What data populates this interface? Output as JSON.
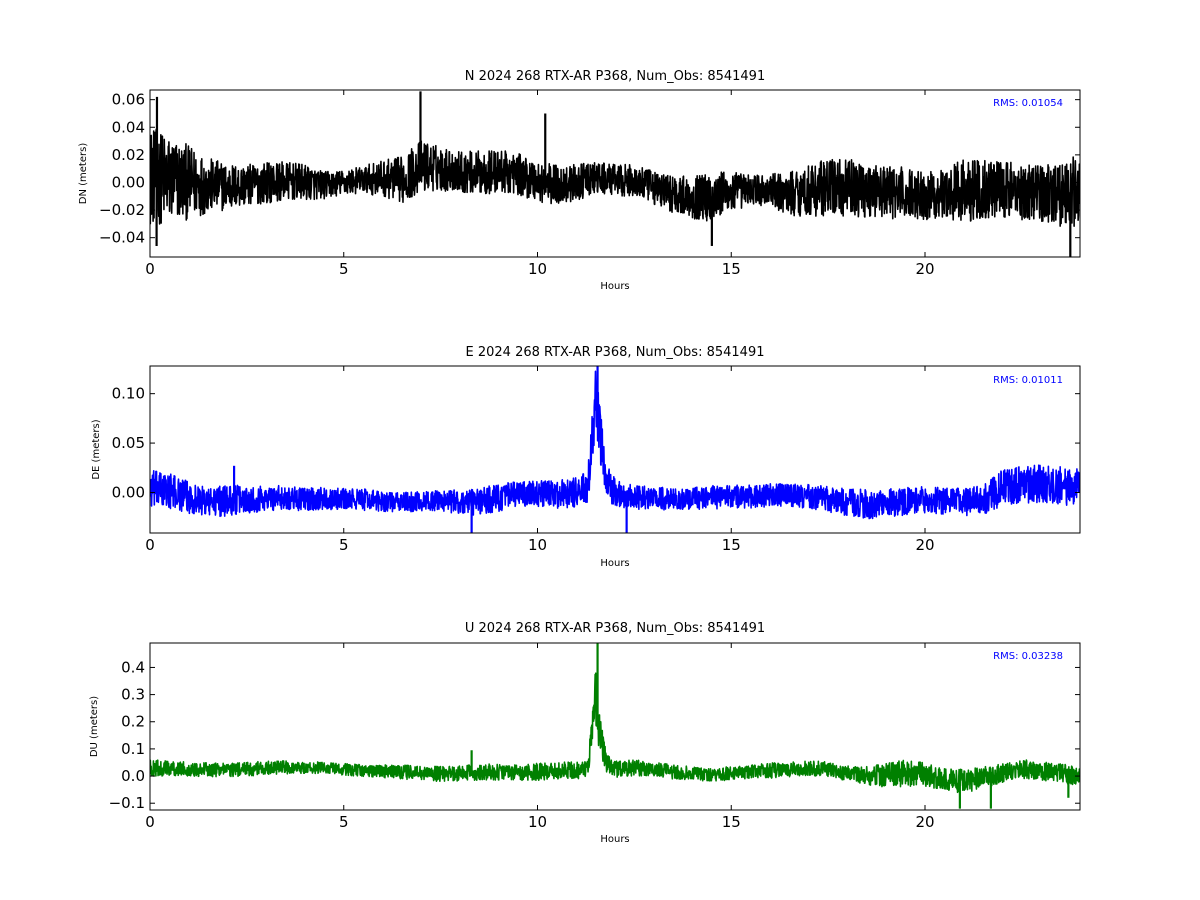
{
  "chart_data": [
    {
      "type": "line",
      "title": "N 2024 268 RTX-AR  P368, Num_Obs: 8541491",
      "xlabel": "Hours",
      "ylabel": "DN (meters)",
      "xlim": [
        0,
        24
      ],
      "ylim": [
        -0.054,
        0.067
      ],
      "xticks": [
        0,
        5,
        10,
        15,
        20
      ],
      "yticks": [
        -0.04,
        -0.02,
        0.0,
        0.02,
        0.04,
        0.06
      ],
      "ytick_labels": [
        "−0.04",
        "−0.02",
        "0.00",
        "0.02",
        "0.04",
        "0.06"
      ],
      "color": "#000000",
      "annotation": "RMS:  0.01054",
      "annotation_color": "#0000ff",
      "series": [
        {
          "x": [
            0,
            0.5,
            1,
            1.5,
            2,
            2.5,
            3,
            3.5,
            4,
            4.5,
            5,
            5.5,
            6,
            6.5,
            7,
            7.5,
            8,
            8.5,
            9,
            9.5,
            10,
            10.5,
            11,
            11.5,
            12,
            12.5,
            13,
            13.5,
            14,
            14.5,
            15,
            15.5,
            16,
            16.5,
            17,
            17.5,
            18,
            18.5,
            19,
            19.5,
            20,
            20.5,
            21,
            21.5,
            22,
            22.5,
            23,
            23.5,
            24
          ],
          "center": [
            0.005,
            0.002,
            0.0,
            -0.002,
            -0.003,
            -0.002,
            0.0,
            0.001,
            0.0,
            -0.002,
            0.0,
            0.002,
            0.003,
            0.002,
            0.012,
            0.01,
            0.008,
            0.007,
            0.008,
            0.006,
            0.001,
            -0.002,
            0.0,
            0.003,
            0.002,
            0.001,
            -0.004,
            -0.008,
            -0.011,
            -0.01,
            -0.007,
            -0.005,
            -0.006,
            -0.008,
            -0.006,
            -0.003,
            -0.004,
            -0.005,
            -0.007,
            -0.008,
            -0.009,
            -0.008,
            -0.006,
            -0.004,
            -0.005,
            -0.006,
            -0.007,
            -0.008,
            -0.006
          ],
          "amplitude": [
            0.036,
            0.032,
            0.027,
            0.02,
            0.017,
            0.015,
            0.015,
            0.014,
            0.013,
            0.01,
            0.009,
            0.01,
            0.013,
            0.017,
            0.019,
            0.016,
            0.015,
            0.016,
            0.016,
            0.015,
            0.015,
            0.015,
            0.013,
            0.012,
            0.011,
            0.012,
            0.012,
            0.014,
            0.015,
            0.019,
            0.015,
            0.011,
            0.012,
            0.016,
            0.019,
            0.021,
            0.021,
            0.02,
            0.019,
            0.019,
            0.018,
            0.017,
            0.024,
            0.022,
            0.02,
            0.021,
            0.022,
            0.024,
            0.026
          ]
        }
      ],
      "spikes": [
        [
          0.18,
          0.062
        ],
        [
          0.17,
          -0.046
        ],
        [
          6.98,
          0.066
        ],
        [
          10.2,
          0.05
        ],
        [
          14.5,
          -0.046
        ],
        [
          23.75,
          -0.054
        ]
      ]
    },
    {
      "type": "line",
      "title": "E 2024 268 RTX-AR  P368, Num_Obs: 8541491",
      "xlabel": "Hours",
      "ylabel": "DE (meters)",
      "xlim": [
        0,
        24
      ],
      "ylim": [
        -0.041,
        0.128
      ],
      "xticks": [
        0,
        5,
        10,
        15,
        20
      ],
      "yticks": [
        0.0,
        0.05,
        0.1
      ],
      "ytick_labels": [
        "0.00",
        "0.05",
        "0.10"
      ],
      "color": "#0000ff",
      "annotation": "RMS:  0.01011",
      "annotation_color": "#0000ff",
      "series": [
        {
          "x": [
            0,
            0.5,
            1,
            1.5,
            2,
            2.5,
            3,
            3.5,
            4,
            4.5,
            5,
            5.5,
            6,
            6.5,
            7,
            7.5,
            8,
            8.5,
            9,
            9.5,
            10,
            10.5,
            11,
            11.3,
            11.5,
            11.6,
            11.8,
            12,
            12.5,
            13,
            13.5,
            14,
            14.5,
            15,
            15.5,
            16,
            16.5,
            17,
            17.5,
            18,
            18.5,
            19,
            19.5,
            20,
            20.5,
            21,
            21.5,
            22,
            22.5,
            23,
            23.5,
            24
          ],
          "center": [
            0.003,
            0.002,
            -0.005,
            -0.01,
            -0.008,
            -0.007,
            -0.006,
            -0.005,
            -0.007,
            -0.006,
            -0.007,
            -0.007,
            -0.009,
            -0.01,
            -0.009,
            -0.008,
            -0.01,
            -0.009,
            -0.005,
            -0.002,
            -0.001,
            -0.002,
            0.0,
            0.005,
            0.09,
            0.06,
            0.01,
            0.0,
            -0.005,
            -0.006,
            -0.007,
            -0.006,
            -0.005,
            -0.004,
            -0.004,
            -0.003,
            -0.003,
            -0.004,
            -0.007,
            -0.01,
            -0.012,
            -0.011,
            -0.009,
            -0.008,
            -0.009,
            -0.01,
            -0.008,
            0.005,
            0.008,
            0.009,
            0.007,
            0.005
          ],
          "amplitude": [
            0.02,
            0.018,
            0.016,
            0.015,
            0.016,
            0.014,
            0.013,
            0.012,
            0.012,
            0.011,
            0.011,
            0.011,
            0.01,
            0.01,
            0.01,
            0.011,
            0.013,
            0.014,
            0.014,
            0.013,
            0.013,
            0.014,
            0.015,
            0.018,
            0.035,
            0.03,
            0.018,
            0.014,
            0.013,
            0.012,
            0.011,
            0.011,
            0.012,
            0.012,
            0.012,
            0.012,
            0.012,
            0.012,
            0.013,
            0.014,
            0.015,
            0.015,
            0.014,
            0.014,
            0.014,
            0.014,
            0.015,
            0.018,
            0.019,
            0.019,
            0.019,
            0.02
          ]
        }
      ],
      "spikes": [
        [
          2.17,
          0.027
        ],
        [
          8.3,
          -0.041
        ],
        [
          11.55,
          0.128
        ],
        [
          12.3,
          -0.041
        ],
        [
          23.5,
          0.02
        ]
      ]
    },
    {
      "type": "line",
      "title": "U 2024 268 RTX-AR  P368, Num_Obs: 8541491",
      "xlabel": "Hours",
      "ylabel": "DU (meters)",
      "xlim": [
        0,
        24
      ],
      "ylim": [
        -0.125,
        0.49
      ],
      "xticks": [
        0,
        5,
        10,
        15,
        20
      ],
      "yticks": [
        -0.1,
        0.0,
        0.1,
        0.2,
        0.3,
        0.4
      ],
      "ytick_labels": [
        "−0.1",
        "0.0",
        "0.1",
        "0.2",
        "0.3",
        "0.4"
      ],
      "color": "#008000",
      "annotation": "RMS:  0.03238",
      "annotation_color": "#0000ff",
      "series": [
        {
          "x": [
            0,
            0.5,
            1,
            1.5,
            2,
            2.5,
            3,
            3.5,
            4,
            4.5,
            5,
            5.5,
            6,
            6.5,
            7,
            7.5,
            8,
            8.5,
            9,
            9.5,
            10,
            10.5,
            11,
            11.3,
            11.5,
            11.6,
            11.8,
            12,
            12.5,
            13,
            13.5,
            14,
            14.5,
            15,
            15.5,
            16,
            16.5,
            17,
            17.5,
            18,
            18.5,
            19,
            19.5,
            20,
            20.5,
            21,
            21.5,
            22,
            22.5,
            23,
            23.5,
            24
          ],
          "center": [
            0.03,
            0.028,
            0.025,
            0.024,
            0.022,
            0.025,
            0.03,
            0.032,
            0.03,
            0.03,
            0.025,
            0.02,
            0.018,
            0.015,
            0.01,
            0.008,
            0.01,
            0.015,
            0.015,
            0.012,
            0.015,
            0.02,
            0.02,
            0.025,
            0.3,
            0.15,
            0.045,
            0.025,
            0.03,
            0.025,
            0.015,
            0.01,
            0.005,
            0.01,
            0.015,
            0.02,
            0.025,
            0.03,
            0.025,
            0.01,
            0.0,
            0.005,
            0.01,
            0.005,
            -0.01,
            -0.02,
            -0.005,
            0.01,
            0.025,
            0.02,
            0.01,
            0.0
          ],
          "amplitude": [
            0.03,
            0.028,
            0.026,
            0.026,
            0.025,
            0.026,
            0.025,
            0.024,
            0.022,
            0.022,
            0.022,
            0.022,
            0.024,
            0.026,
            0.028,
            0.028,
            0.028,
            0.03,
            0.03,
            0.03,
            0.032,
            0.032,
            0.032,
            0.03,
            0.1,
            0.08,
            0.035,
            0.03,
            0.03,
            0.028,
            0.026,
            0.025,
            0.025,
            0.025,
            0.026,
            0.028,
            0.028,
            0.028,
            0.028,
            0.028,
            0.035,
            0.045,
            0.05,
            0.045,
            0.04,
            0.045,
            0.04,
            0.035,
            0.035,
            0.035,
            0.035,
            0.035
          ]
        }
      ],
      "spikes": [
        [
          8.3,
          0.095
        ],
        [
          11.55,
          0.49
        ],
        [
          20.9,
          -0.12
        ],
        [
          21.7,
          -0.12
        ],
        [
          23.7,
          -0.08
        ]
      ]
    }
  ]
}
